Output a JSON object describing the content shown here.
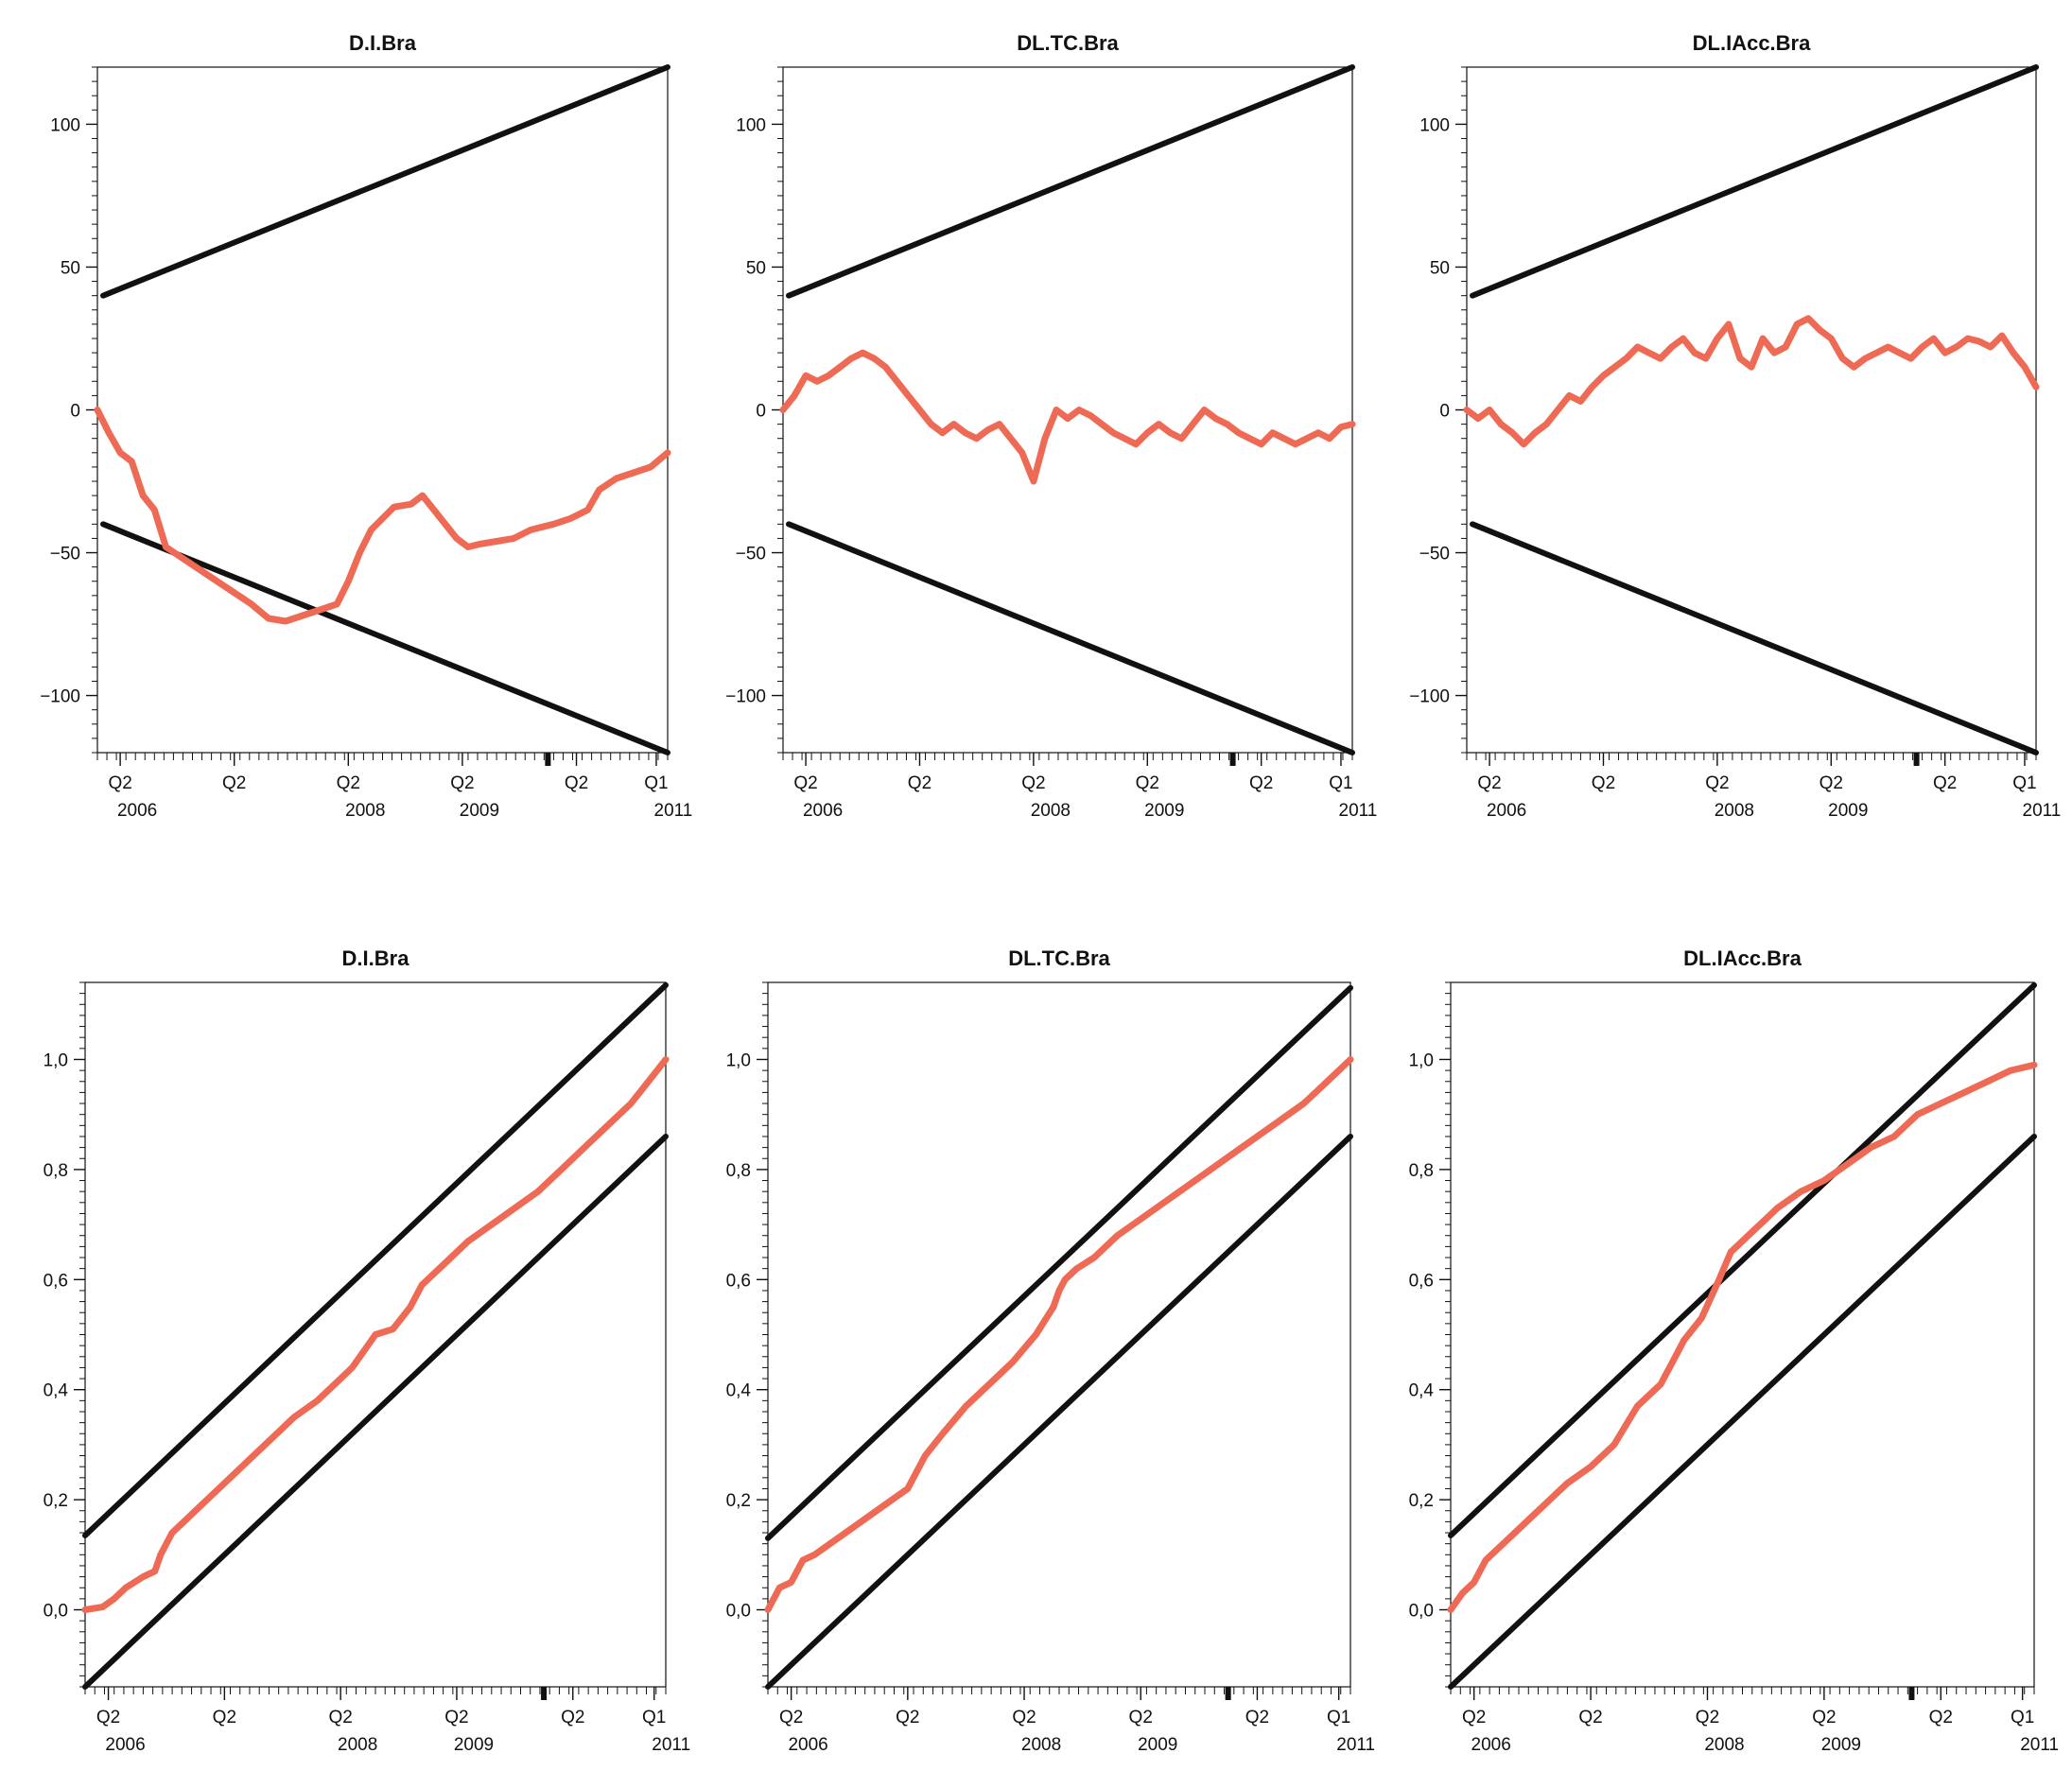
{
  "colors": {
    "series": "#ee6a55",
    "bounds": "#111111",
    "axis": "#111111"
  },
  "chart_data": [
    {
      "type": "line",
      "title": "D.I.Bra",
      "ylim": [
        -120,
        120
      ],
      "yticks": [
        -100,
        -50,
        0,
        50,
        100
      ],
      "ytick_labels": [
        "−100",
        "−50",
        "0",
        "50",
        "100"
      ],
      "xlim": [
        0,
        1
      ],
      "xticks": [
        {
          "pos": 0.04,
          "q": "Q2",
          "year": "2006"
        },
        {
          "pos": 0.24,
          "q": "Q2",
          "year": ""
        },
        {
          "pos": 0.44,
          "q": "Q2",
          "year": "2008"
        },
        {
          "pos": 0.64,
          "q": "Q2",
          "year": "2009"
        },
        {
          "pos": 0.84,
          "q": "Q2",
          "year": ""
        },
        {
          "pos": 0.98,
          "q": "Q1",
          "year": "2011"
        }
      ],
      "marker_pos": 0.79,
      "bounds": [
        {
          "x": [
            0.01,
            1.0
          ],
          "y": [
            40,
            120
          ]
        },
        {
          "x": [
            0.01,
            1.0
          ],
          "y": [
            -40,
            -120
          ]
        }
      ],
      "series": [
        {
          "x": [
            0.0,
            0.02,
            0.04,
            0.06,
            0.08,
            0.1,
            0.12,
            0.15,
            0.18,
            0.21,
            0.24,
            0.27,
            0.3,
            0.33,
            0.36,
            0.39,
            0.42,
            0.44,
            0.46,
            0.48,
            0.5,
            0.52,
            0.55,
            0.57,
            0.59,
            0.61,
            0.63,
            0.65,
            0.67,
            0.7,
            0.73,
            0.76,
            0.8,
            0.83,
            0.86,
            0.88,
            0.91,
            0.94,
            0.97,
            1.0
          ],
          "y": [
            0,
            -8,
            -15,
            -18,
            -30,
            -35,
            -48,
            -52,
            -56,
            -60,
            -64,
            -68,
            -73,
            -74,
            -72,
            -70,
            -68,
            -60,
            -50,
            -42,
            -38,
            -34,
            -33,
            -30,
            -35,
            -40,
            -45,
            -48,
            -47,
            -46,
            -45,
            -42,
            -40,
            -38,
            -35,
            -28,
            -24,
            -22,
            -20,
            -15
          ]
        }
      ]
    },
    {
      "type": "line",
      "title": "DL.TC.Bra",
      "ylim": [
        -120,
        120
      ],
      "yticks": [
        -100,
        -50,
        0,
        50,
        100
      ],
      "ytick_labels": [
        "−100",
        "−50",
        "0",
        "50",
        "100"
      ],
      "xlim": [
        0,
        1
      ],
      "xticks": [
        {
          "pos": 0.04,
          "q": "Q2",
          "year": "2006"
        },
        {
          "pos": 0.24,
          "q": "Q2",
          "year": ""
        },
        {
          "pos": 0.44,
          "q": "Q2",
          "year": "2008"
        },
        {
          "pos": 0.64,
          "q": "Q2",
          "year": "2009"
        },
        {
          "pos": 0.84,
          "q": "Q2",
          "year": ""
        },
        {
          "pos": 0.98,
          "q": "Q1",
          "year": "2011"
        }
      ],
      "marker_pos": 0.79,
      "bounds": [
        {
          "x": [
            0.01,
            1.0
          ],
          "y": [
            40,
            120
          ]
        },
        {
          "x": [
            0.01,
            1.0
          ],
          "y": [
            -40,
            -120
          ]
        }
      ],
      "series": [
        {
          "x": [
            0.0,
            0.02,
            0.04,
            0.06,
            0.08,
            0.1,
            0.12,
            0.14,
            0.16,
            0.18,
            0.2,
            0.22,
            0.24,
            0.26,
            0.28,
            0.3,
            0.32,
            0.34,
            0.36,
            0.38,
            0.4,
            0.42,
            0.44,
            0.46,
            0.48,
            0.5,
            0.52,
            0.54,
            0.56,
            0.58,
            0.6,
            0.62,
            0.64,
            0.66,
            0.68,
            0.7,
            0.72,
            0.74,
            0.76,
            0.78,
            0.8,
            0.82,
            0.84,
            0.86,
            0.88,
            0.9,
            0.92,
            0.94,
            0.96,
            0.98,
            1.0
          ],
          "y": [
            0,
            5,
            12,
            10,
            12,
            15,
            18,
            20,
            18,
            15,
            10,
            5,
            0,
            -5,
            -8,
            -5,
            -8,
            -10,
            -7,
            -5,
            -10,
            -15,
            -25,
            -10,
            0,
            -3,
            0,
            -2,
            -5,
            -8,
            -10,
            -12,
            -8,
            -5,
            -8,
            -10,
            -5,
            0,
            -3,
            -5,
            -8,
            -10,
            -12,
            -8,
            -10,
            -12,
            -10,
            -8,
            -10,
            -6,
            -5
          ]
        }
      ]
    },
    {
      "type": "line",
      "title": "DL.IAcc.Bra",
      "ylim": [
        -120,
        120
      ],
      "yticks": [
        -100,
        -50,
        0,
        50,
        100
      ],
      "ytick_labels": [
        "−100",
        "−50",
        "0",
        "50",
        "100"
      ],
      "xlim": [
        0,
        1
      ],
      "xticks": [
        {
          "pos": 0.04,
          "q": "Q2",
          "year": "2006"
        },
        {
          "pos": 0.24,
          "q": "Q2",
          "year": ""
        },
        {
          "pos": 0.44,
          "q": "Q2",
          "year": "2008"
        },
        {
          "pos": 0.64,
          "q": "Q2",
          "year": "2009"
        },
        {
          "pos": 0.84,
          "q": "Q2",
          "year": ""
        },
        {
          "pos": 0.98,
          "q": "Q1",
          "year": "2011"
        }
      ],
      "marker_pos": 0.79,
      "bounds": [
        {
          "x": [
            0.01,
            1.0
          ],
          "y": [
            40,
            120
          ]
        },
        {
          "x": [
            0.01,
            1.0
          ],
          "y": [
            -40,
            -120
          ]
        }
      ],
      "series": [
        {
          "x": [
            0.0,
            0.02,
            0.04,
            0.06,
            0.08,
            0.1,
            0.12,
            0.14,
            0.16,
            0.18,
            0.2,
            0.22,
            0.24,
            0.26,
            0.28,
            0.3,
            0.32,
            0.34,
            0.36,
            0.38,
            0.4,
            0.42,
            0.44,
            0.46,
            0.48,
            0.5,
            0.52,
            0.54,
            0.56,
            0.58,
            0.6,
            0.62,
            0.64,
            0.66,
            0.68,
            0.7,
            0.72,
            0.74,
            0.76,
            0.78,
            0.8,
            0.82,
            0.84,
            0.86,
            0.88,
            0.9,
            0.92,
            0.94,
            0.96,
            0.98,
            1.0
          ],
          "y": [
            0,
            -3,
            0,
            -5,
            -8,
            -12,
            -8,
            -5,
            0,
            5,
            3,
            8,
            12,
            15,
            18,
            22,
            20,
            18,
            22,
            25,
            20,
            18,
            25,
            30,
            18,
            15,
            25,
            20,
            22,
            30,
            32,
            28,
            25,
            18,
            15,
            18,
            20,
            22,
            20,
            18,
            22,
            25,
            20,
            22,
            25,
            24,
            22,
            26,
            20,
            15,
            8
          ]
        }
      ]
    },
    {
      "type": "line",
      "title": "D.I.Bra",
      "ylim": [
        -0.14,
        1.14
      ],
      "yticks": [
        0.0,
        0.2,
        0.4,
        0.6,
        0.8,
        1.0
      ],
      "ytick_labels": [
        "0,0",
        "0,2",
        "0,4",
        "0,6",
        "0,8",
        "1,0"
      ],
      "xlim": [
        0,
        1
      ],
      "xticks": [
        {
          "pos": 0.04,
          "q": "Q2",
          "year": "2006"
        },
        {
          "pos": 0.24,
          "q": "Q2",
          "year": ""
        },
        {
          "pos": 0.44,
          "q": "Q2",
          "year": "2008"
        },
        {
          "pos": 0.64,
          "q": "Q2",
          "year": "2009"
        },
        {
          "pos": 0.84,
          "q": "Q2",
          "year": ""
        },
        {
          "pos": 0.98,
          "q": "Q1",
          "year": "2011"
        }
      ],
      "marker_pos": 0.79,
      "bounds": [
        {
          "x": [
            0.0,
            1.0
          ],
          "y": [
            0.135,
            1.135
          ]
        },
        {
          "x": [
            0.0,
            1.0
          ],
          "y": [
            -0.14,
            0.86
          ]
        }
      ],
      "series": [
        {
          "x": [
            0.0,
            0.03,
            0.05,
            0.07,
            0.1,
            0.12,
            0.13,
            0.15,
            0.17,
            0.2,
            0.23,
            0.26,
            0.3,
            0.33,
            0.36,
            0.4,
            0.43,
            0.46,
            0.48,
            0.5,
            0.53,
            0.56,
            0.58,
            0.62,
            0.66,
            0.7,
            0.74,
            0.78,
            0.82,
            0.86,
            0.9,
            0.94,
            0.97,
            1.0
          ],
          "y": [
            0.0,
            0.005,
            0.02,
            0.04,
            0.06,
            0.07,
            0.1,
            0.14,
            0.16,
            0.19,
            0.22,
            0.25,
            0.29,
            0.32,
            0.35,
            0.38,
            0.41,
            0.44,
            0.47,
            0.5,
            0.51,
            0.55,
            0.59,
            0.63,
            0.67,
            0.7,
            0.73,
            0.76,
            0.8,
            0.84,
            0.88,
            0.92,
            0.96,
            1.0
          ]
        }
      ]
    },
    {
      "type": "line",
      "title": "DL.TC.Bra",
      "ylim": [
        -0.14,
        1.14
      ],
      "yticks": [
        0.0,
        0.2,
        0.4,
        0.6,
        0.8,
        1.0
      ],
      "ytick_labels": [
        "0,0",
        "0,2",
        "0,4",
        "0,6",
        "0,8",
        "1,0"
      ],
      "xlim": [
        0,
        1
      ],
      "xticks": [
        {
          "pos": 0.04,
          "q": "Q2",
          "year": "2006"
        },
        {
          "pos": 0.24,
          "q": "Q2",
          "year": ""
        },
        {
          "pos": 0.44,
          "q": "Q2",
          "year": "2008"
        },
        {
          "pos": 0.64,
          "q": "Q2",
          "year": "2009"
        },
        {
          "pos": 0.84,
          "q": "Q2",
          "year": ""
        },
        {
          "pos": 0.98,
          "q": "Q1",
          "year": "2011"
        }
      ],
      "marker_pos": 0.79,
      "bounds": [
        {
          "x": [
            0.0,
            1.0
          ],
          "y": [
            0.13,
            1.13
          ]
        },
        {
          "x": [
            0.0,
            1.0
          ],
          "y": [
            -0.14,
            0.86
          ]
        }
      ],
      "series": [
        {
          "x": [
            0.0,
            0.02,
            0.04,
            0.06,
            0.08,
            0.12,
            0.16,
            0.2,
            0.24,
            0.27,
            0.3,
            0.34,
            0.38,
            0.42,
            0.46,
            0.49,
            0.5,
            0.51,
            0.53,
            0.56,
            0.6,
            0.64,
            0.68,
            0.72,
            0.76,
            0.8,
            0.84,
            0.88,
            0.92,
            0.96,
            1.0
          ],
          "y": [
            0.0,
            0.04,
            0.05,
            0.09,
            0.1,
            0.13,
            0.16,
            0.19,
            0.22,
            0.28,
            0.32,
            0.37,
            0.41,
            0.45,
            0.5,
            0.55,
            0.58,
            0.6,
            0.62,
            0.64,
            0.68,
            0.71,
            0.74,
            0.77,
            0.8,
            0.83,
            0.86,
            0.89,
            0.92,
            0.96,
            1.0
          ]
        }
      ]
    },
    {
      "type": "line",
      "title": "DL.IAcc.Bra",
      "ylim": [
        -0.14,
        1.14
      ],
      "yticks": [
        0.0,
        0.2,
        0.4,
        0.6,
        0.8,
        1.0
      ],
      "ytick_labels": [
        "0,0",
        "0,2",
        "0,4",
        "0,6",
        "0,8",
        "1,0"
      ],
      "xlim": [
        0,
        1
      ],
      "xticks": [
        {
          "pos": 0.04,
          "q": "Q2",
          "year": "2006"
        },
        {
          "pos": 0.24,
          "q": "Q2",
          "year": ""
        },
        {
          "pos": 0.44,
          "q": "Q2",
          "year": "2008"
        },
        {
          "pos": 0.64,
          "q": "Q2",
          "year": "2009"
        },
        {
          "pos": 0.84,
          "q": "Q2",
          "year": ""
        },
        {
          "pos": 0.98,
          "q": "Q1",
          "year": "2011"
        }
      ],
      "marker_pos": 0.79,
      "bounds": [
        {
          "x": [
            0.0,
            1.0
          ],
          "y": [
            0.135,
            1.135
          ]
        },
        {
          "x": [
            0.0,
            1.0
          ],
          "y": [
            -0.14,
            0.86
          ]
        }
      ],
      "series": [
        {
          "x": [
            0.0,
            0.02,
            0.04,
            0.06,
            0.09,
            0.12,
            0.16,
            0.2,
            0.24,
            0.28,
            0.32,
            0.36,
            0.38,
            0.4,
            0.43,
            0.46,
            0.48,
            0.52,
            0.54,
            0.56,
            0.6,
            0.64,
            0.68,
            0.72,
            0.76,
            0.8,
            0.84,
            0.88,
            0.92,
            0.96,
            1.0
          ],
          "y": [
            0.0,
            0.03,
            0.05,
            0.09,
            0.12,
            0.15,
            0.19,
            0.23,
            0.26,
            0.3,
            0.37,
            0.41,
            0.45,
            0.49,
            0.53,
            0.6,
            0.65,
            0.69,
            0.71,
            0.73,
            0.76,
            0.78,
            0.81,
            0.84,
            0.86,
            0.9,
            0.92,
            0.94,
            0.96,
            0.98,
            0.99
          ]
        }
      ]
    }
  ]
}
